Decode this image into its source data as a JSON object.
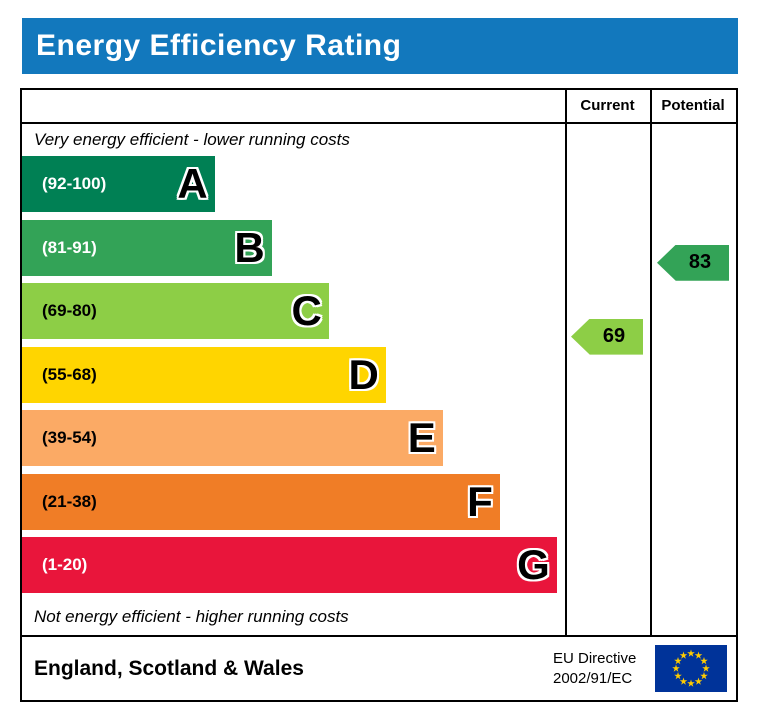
{
  "title": "Energy Efficiency Rating",
  "table": {
    "current_label": "Current",
    "potential_label": "Potential",
    "top_note": "Very energy efficient - lower running costs",
    "bottom_note": "Not energy efficient - higher running costs"
  },
  "bands": [
    {
      "letter": "A",
      "range": "(92-100)",
      "low": 92,
      "high": 100,
      "color": "#008054",
      "text": "#ffffff",
      "width_pct": 35.5
    },
    {
      "letter": "B",
      "range": "(81-91)",
      "low": 81,
      "high": 91,
      "color": "#33a357",
      "text": "#ffffff",
      "width_pct": 46
    },
    {
      "letter": "C",
      "range": "(69-80)",
      "low": 69,
      "high": 80,
      "color": "#8dce46",
      "text": "#000000",
      "width_pct": 56.5
    },
    {
      "letter": "D",
      "range": "(55-68)",
      "low": 55,
      "high": 68,
      "color": "#ffd500",
      "text": "#000000",
      "width_pct": 67
    },
    {
      "letter": "E",
      "range": "(39-54)",
      "low": 39,
      "high": 54,
      "color": "#fbaa65",
      "text": "#000000",
      "width_pct": 77.5
    },
    {
      "letter": "F",
      "range": "(21-38)",
      "low": 21,
      "high": 38,
      "color": "#f07d26",
      "text": "#000000",
      "width_pct": 88
    },
    {
      "letter": "G",
      "range": "(1-20)",
      "low": 1,
      "high": 20,
      "color": "#e9153b",
      "text": "#ffffff",
      "width_pct": 98.5
    }
  ],
  "ratings": {
    "current": {
      "value": 69,
      "band": "C",
      "band_index": 2,
      "color": "#8dce46"
    },
    "potential": {
      "value": 83,
      "band": "B",
      "band_index": 1,
      "color": "#33a357"
    }
  },
  "footer": {
    "region": "England, Scotland & Wales",
    "directive_line1": "EU Directive",
    "directive_line2": "2002/91/EC",
    "flag_icon": "eu-flag-icon"
  },
  "colors": {
    "header_bg": "#1278bd",
    "header_text": "#ffffff",
    "eu_flag_bg": "#003399",
    "eu_star": "#ffcc00"
  },
  "chart_data": {
    "type": "bar",
    "orientation": "horizontal",
    "title": "Energy Efficiency Rating",
    "categories": [
      "A",
      "B",
      "C",
      "D",
      "E",
      "F",
      "G"
    ],
    "band_ranges": [
      "92-100",
      "81-91",
      "69-80",
      "55-68",
      "39-54",
      "21-38",
      "1-20"
    ],
    "band_bar_lengths_pct": [
      35.5,
      46,
      56.5,
      67,
      77.5,
      88,
      98.5
    ],
    "series": [
      {
        "name": "Current",
        "value": 69,
        "band": "C"
      },
      {
        "name": "Potential",
        "value": 83,
        "band": "B"
      }
    ],
    "scale": [
      1,
      100
    ],
    "notes": [
      "Very energy efficient - lower running costs",
      "Not energy efficient - higher running costs"
    ],
    "region": "England, Scotland & Wales",
    "directive": "EU Directive 2002/91/EC",
    "legend_position": "none",
    "grid": false
  }
}
